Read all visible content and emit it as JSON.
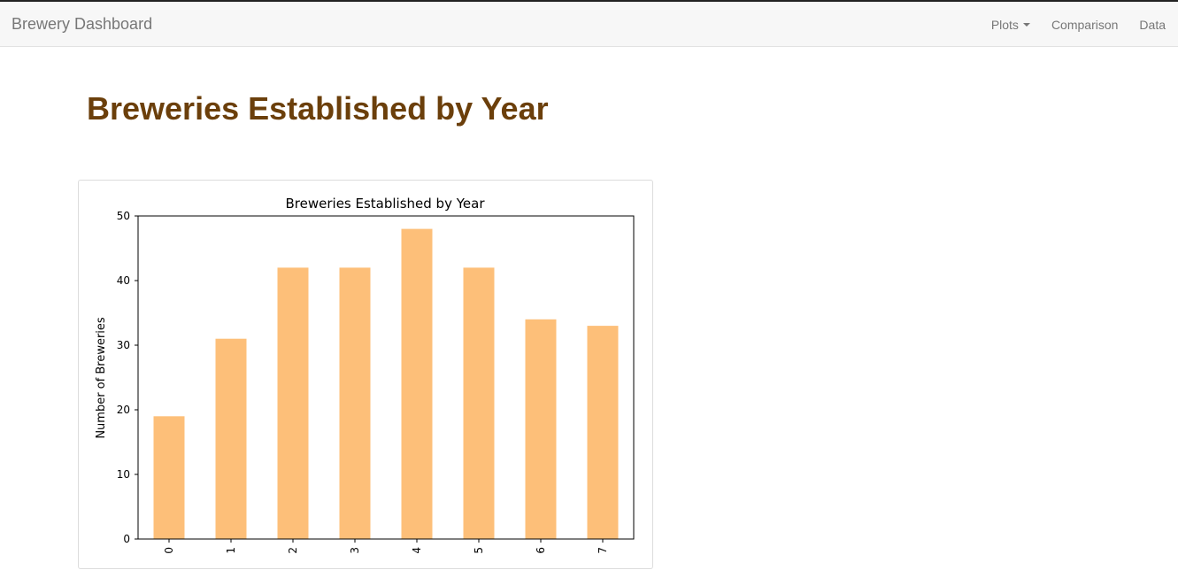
{
  "navbar": {
    "brand": "Brewery Dashboard",
    "links": [
      {
        "label": "Plots",
        "dropdown": true
      },
      {
        "label": "Comparison",
        "dropdown": false
      },
      {
        "label": "Data",
        "dropdown": false
      }
    ]
  },
  "page": {
    "title": "Breweries Established by Year"
  },
  "colors": {
    "title": "#6b3f0b",
    "bar": "#fdbf79"
  },
  "chart_data": {
    "type": "bar",
    "title": "Breweries Established by Year",
    "xlabel": "",
    "ylabel": "Number of Breweries",
    "categories": [
      "0",
      "1",
      "2",
      "3",
      "4",
      "5",
      "6",
      "7"
    ],
    "values": [
      19,
      31,
      42,
      42,
      48,
      42,
      34,
      33
    ],
    "ylim": [
      0,
      50
    ],
    "yticks": [
      "0",
      "10",
      "20",
      "30",
      "40",
      "50"
    ],
    "grid": false
  }
}
